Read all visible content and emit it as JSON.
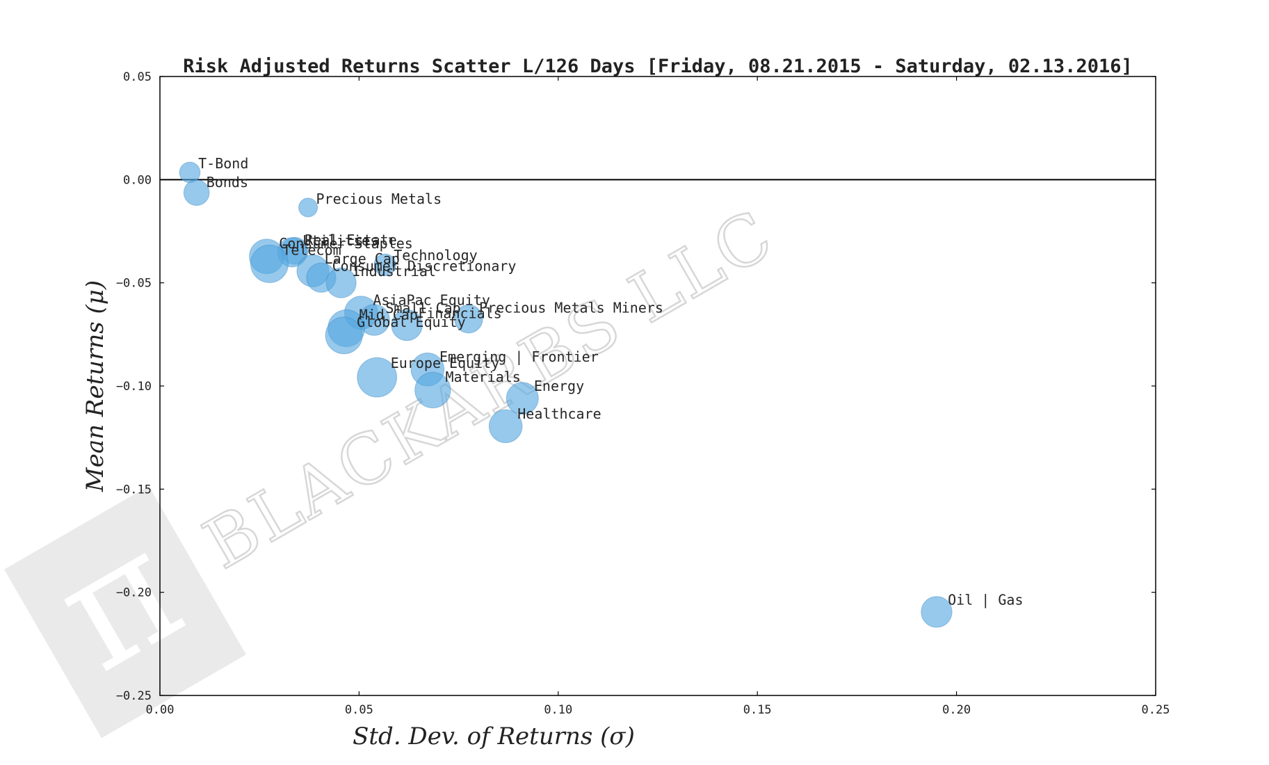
{
  "chart_data": {
    "type": "scatter",
    "title": "Risk Adjusted Returns Scatter L/126 Days [Friday, 08.21.2015 - Saturday, 02.13.2016]",
    "xlabel": "Std. Dev. of Returns (σ)",
    "ylabel": "Mean Returns (μ)",
    "xlim": [
      0.0,
      0.25
    ],
    "ylim": [
      -0.25,
      0.05
    ],
    "x_ticks": [
      "0.00",
      "0.05",
      "0.10",
      "0.15",
      "0.20",
      "0.25"
    ],
    "y_ticks": [
      "0.05",
      "0.00",
      "−0.05",
      "−0.10",
      "−0.15",
      "−0.20",
      "−0.25"
    ],
    "reference_line_y": 0.0,
    "grid": false,
    "point_color": "#56a8e0",
    "points": [
      {
        "label": "T-Bond",
        "x": 0.0075,
        "y": 0.0035,
        "size": 0.55
      },
      {
        "label": "Bonds",
        "x": 0.0092,
        "y": -0.0063,
        "size": 0.68
      },
      {
        "label": "Precious Metals",
        "x": 0.0372,
        "y": -0.0135,
        "size": 0.5
      },
      {
        "label": "Real Estate",
        "x": 0.0338,
        "y": -0.0345,
        "size": 0.72
      },
      {
        "label": "Utilities",
        "x": 0.0332,
        "y": -0.0352,
        "size": 0.78
      },
      {
        "label": "Consumer Staples",
        "x": 0.0268,
        "y": -0.0372,
        "size": 0.92
      },
      {
        "label": "Telecom",
        "x": 0.0275,
        "y": -0.0408,
        "size": 1.0
      },
      {
        "label": "Technology",
        "x": 0.0565,
        "y": -0.0413,
        "size": 0.58
      },
      {
        "label": "Large Cap",
        "x": 0.0384,
        "y": -0.0442,
        "size": 0.85
      },
      {
        "label": "Consumer Discretionary",
        "x": 0.0405,
        "y": -0.0475,
        "size": 0.78
      },
      {
        "label": "Industrial",
        "x": 0.0455,
        "y": -0.05,
        "size": 0.8
      },
      {
        "label": "AsiaPac Equity",
        "x": 0.0505,
        "y": -0.0645,
        "size": 0.88
      },
      {
        "label": "Small Cap",
        "x": 0.0538,
        "y": -0.068,
        "size": 0.82
      },
      {
        "label": "Precious Metals Miners",
        "x": 0.0775,
        "y": -0.0675,
        "size": 0.75
      },
      {
        "label": "Financials",
        "x": 0.062,
        "y": -0.0705,
        "size": 0.82
      },
      {
        "label": "Mid Cap",
        "x": 0.0468,
        "y": -0.072,
        "size": 0.98
      },
      {
        "label": "Global Equity",
        "x": 0.0462,
        "y": -0.0755,
        "size": 0.98
      },
      {
        "label": "Emerging | Frontier",
        "x": 0.0672,
        "y": -0.092,
        "size": 0.88
      },
      {
        "label": "Europe Equity",
        "x": 0.0545,
        "y": -0.0958,
        "size": 1.05
      },
      {
        "label": "Materials",
        "x": 0.0685,
        "y": -0.102,
        "size": 0.95
      },
      {
        "label": "Energy",
        "x": 0.091,
        "y": -0.106,
        "size": 0.85
      },
      {
        "label": "Healthcare",
        "x": 0.0868,
        "y": -0.1195,
        "size": 0.88
      },
      {
        "label": "Oil | Gas",
        "x": 0.195,
        "y": -0.2095,
        "size": 0.82
      }
    ]
  },
  "watermark": {
    "text": "BLACKARBS LLC",
    "logo_glyph": "π"
  }
}
